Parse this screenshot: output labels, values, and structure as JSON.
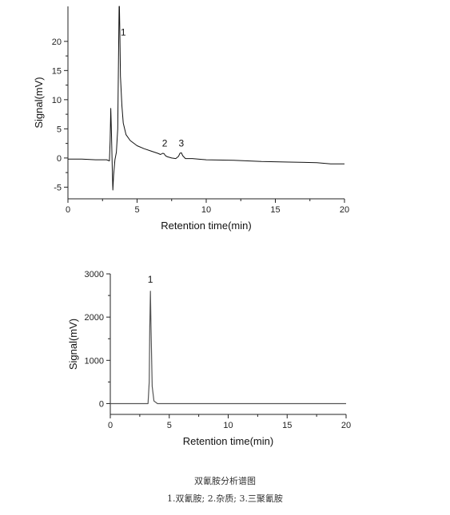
{
  "chart_data": [
    {
      "type": "line",
      "xlabel": "Retention time(min)",
      "ylabel": "Signal(mV)",
      "xlim": [
        0,
        20
      ],
      "ylim": [
        -7,
        26
      ],
      "xticks": [
        0,
        5,
        10,
        15,
        20
      ],
      "yticks": [
        -5,
        0,
        5,
        10,
        15,
        20
      ],
      "grid": false,
      "series": [
        {
          "x": [
            0,
            1,
            2,
            2.8,
            3.0,
            3.05,
            3.1,
            3.15,
            3.2,
            3.25,
            3.3,
            3.4,
            3.5,
            3.6,
            3.7,
            3.72,
            3.75,
            3.8,
            3.9,
            4.0,
            4.2,
            4.5,
            5.0,
            5.5,
            6.0,
            6.5,
            6.7,
            6.85,
            6.95,
            7.05,
            7.2,
            7.5,
            7.8,
            8.0,
            8.1,
            8.2,
            8.3,
            8.5,
            9.0,
            10,
            12,
            14,
            16,
            18,
            19,
            20
          ],
          "y": [
            -0.2,
            -0.2,
            -0.3,
            -0.3,
            -0.5,
            3.0,
            8.5,
            4.0,
            -1.5,
            -5.5,
            -3.0,
            -0.3,
            1.0,
            5.0,
            26.0,
            26.0,
            22.0,
            14.0,
            9.0,
            6.0,
            4.0,
            3.0,
            2.1,
            1.6,
            1.2,
            0.8,
            0.6,
            0.8,
            0.75,
            0.4,
            0.2,
            0.0,
            -0.1,
            0.3,
            0.8,
            0.9,
            0.4,
            -0.1,
            -0.1,
            -0.3,
            -0.4,
            -0.6,
            -0.7,
            -0.8,
            -1.0,
            -1.0
          ]
        }
      ],
      "annotations": [
        {
          "text": "1",
          "x": 4.0,
          "y": 21
        },
        {
          "text": "2",
          "x": 7.0,
          "y": 2.0
        },
        {
          "text": "3",
          "x": 8.2,
          "y": 2.0
        }
      ]
    },
    {
      "type": "line",
      "xlabel": "Retention time(min)",
      "ylabel": "Signal(mV)",
      "xlim": [
        0,
        20
      ],
      "ylim": [
        -250,
        3000
      ],
      "xticks": [
        0,
        5,
        10,
        15,
        20
      ],
      "yticks": [
        0,
        1000,
        2000,
        3000
      ],
      "grid": false,
      "series": [
        {
          "x": [
            0,
            3.0,
            3.2,
            3.3,
            3.35,
            3.4,
            3.45,
            3.55,
            3.7,
            4.0,
            5,
            10,
            15,
            20
          ],
          "y": [
            0,
            0,
            0,
            500,
            1800,
            2600,
            1800,
            400,
            60,
            0,
            0,
            0,
            0,
            0
          ]
        }
      ],
      "annotations": [
        {
          "text": "1",
          "x": 3.4,
          "y": 2800
        }
      ]
    }
  ],
  "caption": {
    "title": "双氰胺分析谱图",
    "legend": "1.双氰胺; 2.杂质; 3.三聚氰胺"
  },
  "colors": {
    "line": "#111111",
    "line2": "#555555",
    "axis": "#222222"
  }
}
